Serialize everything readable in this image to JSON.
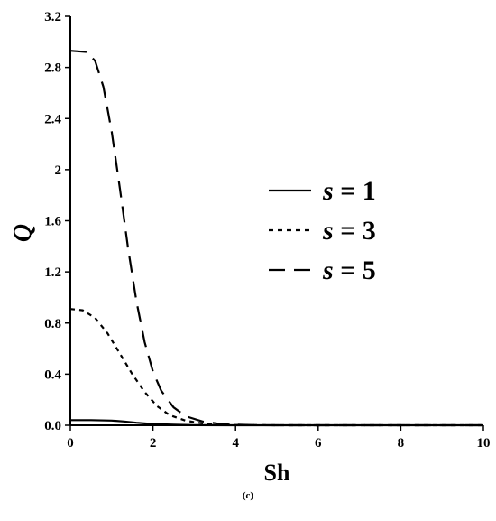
{
  "chart_data": {
    "type": "line",
    "xlabel": "Sh",
    "ylabel": "Q",
    "caption": "(c)",
    "xlim": [
      0,
      10
    ],
    "ylim": [
      0,
      3.2
    ],
    "x_ticks": [
      "0",
      "2",
      "4",
      "6",
      "8",
      "10"
    ],
    "y_ticks": [
      "0.0",
      "0.4",
      "0.8",
      "1.2",
      "1.6",
      "2",
      "2.4",
      "2.8",
      "3.2"
    ],
    "grid": false,
    "legend_position": "center-right",
    "series": [
      {
        "name": "s = 1",
        "symbol": "s",
        "value_label": "= 1",
        "style": "solid",
        "x": [
          0,
          0.5,
          1.0,
          1.3,
          1.6,
          2.0,
          2.5,
          3.0,
          4.0,
          10
        ],
        "y": [
          0.04,
          0.04,
          0.037,
          0.03,
          0.02,
          0.01,
          0.004,
          0.001,
          0.0,
          0.0
        ]
      },
      {
        "name": "s = 3",
        "symbol": "s",
        "value_label": "= 3",
        "style": "dotted",
        "x": [
          0,
          0.3,
          0.6,
          0.9,
          1.2,
          1.5,
          1.8,
          2.1,
          2.4,
          2.8,
          3.2,
          3.6,
          4.0,
          5.0,
          10
        ],
        "y": [
          0.91,
          0.9,
          0.84,
          0.72,
          0.56,
          0.4,
          0.26,
          0.15,
          0.08,
          0.035,
          0.015,
          0.006,
          0.002,
          0.0,
          0.0
        ]
      },
      {
        "name": "s = 5",
        "symbol": "s",
        "value_label": "= 5",
        "style": "dashed",
        "x": [
          0,
          0.4,
          0.6,
          0.8,
          1.0,
          1.2,
          1.4,
          1.6,
          1.8,
          2.0,
          2.2,
          2.5,
          2.8,
          3.2,
          3.6,
          4.0,
          4.5,
          5.0,
          10
        ],
        "y": [
          2.93,
          2.92,
          2.85,
          2.65,
          2.3,
          1.85,
          1.38,
          0.97,
          0.65,
          0.42,
          0.27,
          0.14,
          0.07,
          0.03,
          0.012,
          0.005,
          0.001,
          0.0,
          0.0
        ]
      }
    ]
  }
}
